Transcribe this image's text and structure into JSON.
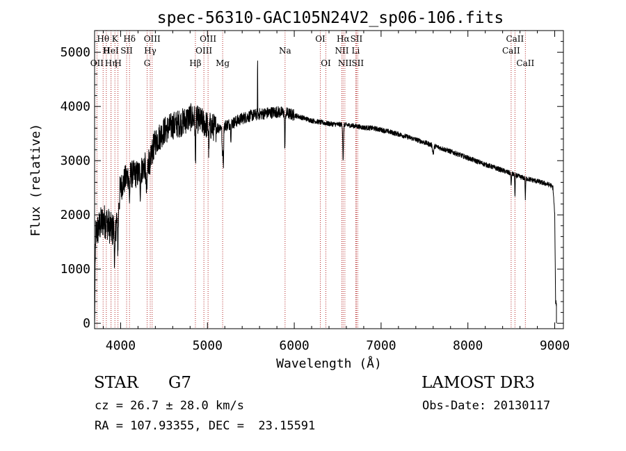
{
  "chart_data": {
    "type": "line",
    "title": "spec-56310-GAC105N24V2_sp06-106.fits",
    "xlabel": "Wavelength (Å)",
    "ylabel": "Flux (relative)",
    "xlim": [
      3700,
      9100
    ],
    "ylim": [
      -100,
      5400
    ],
    "x_ticks": [
      4000,
      5000,
      6000,
      7000,
      8000,
      9000
    ],
    "y_ticks": [
      0,
      1000,
      2000,
      3000,
      4000,
      5000
    ],
    "x_tick_labels": [
      "4000",
      "5000",
      "6000",
      "7000",
      "8000",
      "9000"
    ],
    "y_tick_labels": [
      "0",
      "1000",
      "2000",
      "3000",
      "4000",
      "5000"
    ],
    "line_color": "#000000",
    "marker_color": "#b22222",
    "continuum": [
      [
        3700,
        1600
      ],
      [
        3760,
        1800
      ],
      [
        3800,
        1900
      ],
      [
        3850,
        1850
      ],
      [
        3900,
        1700
      ],
      [
        3950,
        1900
      ],
      [
        4000,
        2500
      ],
      [
        4050,
        2650
      ],
      [
        4100,
        2750
      ],
      [
        4150,
        2750
      ],
      [
        4200,
        2750
      ],
      [
        4250,
        2850
      ],
      [
        4300,
        2950
      ],
      [
        4350,
        3100
      ],
      [
        4400,
        3350
      ],
      [
        4500,
        3550
      ],
      [
        4600,
        3650
      ],
      [
        4700,
        3700
      ],
      [
        4800,
        3800
      ],
      [
        4900,
        3750
      ],
      [
        5000,
        3650
      ],
      [
        5100,
        3600
      ],
      [
        5200,
        3650
      ],
      [
        5300,
        3700
      ],
      [
        5400,
        3780
      ],
      [
        5500,
        3830
      ],
      [
        5600,
        3860
      ],
      [
        5700,
        3880
      ],
      [
        5800,
        3900
      ],
      [
        5900,
        3880
      ],
      [
        6000,
        3840
      ],
      [
        6100,
        3790
      ],
      [
        6200,
        3740
      ],
      [
        6300,
        3710
      ],
      [
        6400,
        3680
      ],
      [
        6500,
        3670
      ],
      [
        6600,
        3660
      ],
      [
        6700,
        3640
      ],
      [
        6800,
        3610
      ],
      [
        6900,
        3600
      ],
      [
        7000,
        3570
      ],
      [
        7200,
        3490
      ],
      [
        7400,
        3390
      ],
      [
        7600,
        3280
      ],
      [
        7800,
        3170
      ],
      [
        8000,
        3050
      ],
      [
        8200,
        2930
      ],
      [
        8400,
        2820
      ],
      [
        8600,
        2700
      ],
      [
        8800,
        2620
      ],
      [
        8950,
        2550
      ],
      [
        8980,
        2500
      ],
      [
        9000,
        2000
      ],
      [
        9010,
        400
      ],
      [
        9020,
        350
      ]
    ],
    "absorption": [
      {
        "x": 3933,
        "depth": 700,
        "w": 8
      },
      {
        "x": 3968,
        "depth": 650,
        "w": 8
      },
      {
        "x": 4102,
        "depth": 450,
        "w": 6
      },
      {
        "x": 4227,
        "depth": 350,
        "w": 5
      },
      {
        "x": 4300,
        "depth": 550,
        "w": 10
      },
      {
        "x": 4340,
        "depth": 400,
        "w": 6
      },
      {
        "x": 4861,
        "depth": 800,
        "w": 5
      },
      {
        "x": 5015,
        "depth": 400,
        "w": 5
      },
      {
        "x": 5172,
        "depth": 550,
        "w": 6
      },
      {
        "x": 5183,
        "depth": 700,
        "w": 5
      },
      {
        "x": 5270,
        "depth": 250,
        "w": 5
      },
      {
        "x": 5892,
        "depth": 650,
        "w": 5
      },
      {
        "x": 6563,
        "depth": 650,
        "w": 6
      },
      {
        "x": 7600,
        "depth": 150,
        "w": 10
      },
      {
        "x": 8498,
        "depth": 250,
        "w": 4
      },
      {
        "x": 8542,
        "depth": 420,
        "w": 4
      },
      {
        "x": 8662,
        "depth": 380,
        "w": 4
      }
    ],
    "emission": [
      {
        "x": 5577,
        "height": 1350,
        "w": 1.5
      },
      {
        "x": 5577,
        "height": 2900,
        "w": 0.5
      }
    ],
    "line_markers": [
      {
        "label": "Hθ",
        "x": 3798,
        "row": 1
      },
      {
        "label": "OII",
        "x": 3727,
        "row": 3
      },
      {
        "label": "H",
        "x": 3835,
        "row": 2
      },
      {
        "label": "HeI",
        "x": 3889,
        "row": 2
      },
      {
        "label": "Hη",
        "x": 3889,
        "row": 3
      },
      {
        "label": "K",
        "x": 3934,
        "row": 1
      },
      {
        "label": "H",
        "x": 3969,
        "row": 3
      },
      {
        "label": "SII",
        "x": 4069,
        "row": 2
      },
      {
        "label": "Hδ",
        "x": 4102,
        "row": 1
      },
      {
        "label": "OIII",
        "x": 4363,
        "row": 1
      },
      {
        "label": "Hγ",
        "x": 4341,
        "row": 2
      },
      {
        "label": "G",
        "x": 4305,
        "row": 3
      },
      {
        "label": "Hβ",
        "x": 4861,
        "row": 3
      },
      {
        "label": "OIII",
        "x": 5007,
        "row": 1
      },
      {
        "label": "OIII",
        "x": 4959,
        "row": 2
      },
      {
        "label": "Mg",
        "x": 5175,
        "row": 3
      },
      {
        "label": "Na",
        "x": 5894,
        "row": 2
      },
      {
        "label": "OI",
        "x": 6300,
        "row": 1
      },
      {
        "label": "OI",
        "x": 6364,
        "row": 3
      },
      {
        "label": "Hα",
        "x": 6563,
        "row": 1
      },
      {
        "label": "NII",
        "x": 6548,
        "row": 2
      },
      {
        "label": "NII",
        "x": 6583,
        "row": 3
      },
      {
        "label": "SII",
        "x": 6716,
        "row": 1
      },
      {
        "label": "Li",
        "x": 6708,
        "row": 2
      },
      {
        "label": "SII",
        "x": 6731,
        "row": 3
      },
      {
        "label": "CaII",
        "x": 8498,
        "row": 2
      },
      {
        "label": "CaII",
        "x": 8542,
        "row": 1
      },
      {
        "label": "CaII",
        "x": 8662,
        "row": 3
      }
    ]
  },
  "info": {
    "class": "STAR",
    "subclass": "G7",
    "survey": "LAMOST DR3",
    "cz": "cz = 26.7 ± 28.0 km/s",
    "obs_date": "Obs-Date: 20130117",
    "radec": "RA = 107.93355, DEC =  23.15591"
  }
}
